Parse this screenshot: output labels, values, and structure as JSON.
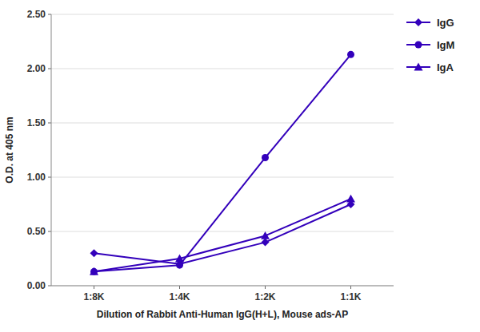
{
  "chart_data": {
    "type": "line",
    "x_label": "Dilution of Rabbit Anti-Human IgG(H+L), Mouse ads-AP",
    "y_label": "O.D. at 405 nm",
    "categories": [
      "1:8K",
      "1:4K",
      "1:2K",
      "1:1K"
    ],
    "series": [
      {
        "name": "IgG",
        "color": "#3300BB",
        "marker": "diamond",
        "values": [
          0.3,
          0.2,
          0.4,
          0.75
        ]
      },
      {
        "name": "IgM",
        "color": "#3300BB",
        "marker": "circle",
        "values": [
          0.13,
          0.19,
          1.18,
          2.13
        ]
      },
      {
        "name": "IgA",
        "color": "#3300BB",
        "marker": "triangle",
        "values": [
          0.13,
          0.25,
          0.46,
          0.8
        ]
      }
    ],
    "ylim": [
      0.0,
      2.5
    ],
    "yticks": [
      {
        "value": 0.0,
        "label": "0.00"
      },
      {
        "value": 0.5,
        "label": "0.50"
      },
      {
        "value": 1.0,
        "label": "1.00"
      },
      {
        "value": 1.5,
        "label": "1.50"
      },
      {
        "value": 2.0,
        "label": "2.00"
      },
      {
        "value": 2.5,
        "label": "2.50"
      }
    ],
    "grid": true,
    "legend": "right"
  }
}
